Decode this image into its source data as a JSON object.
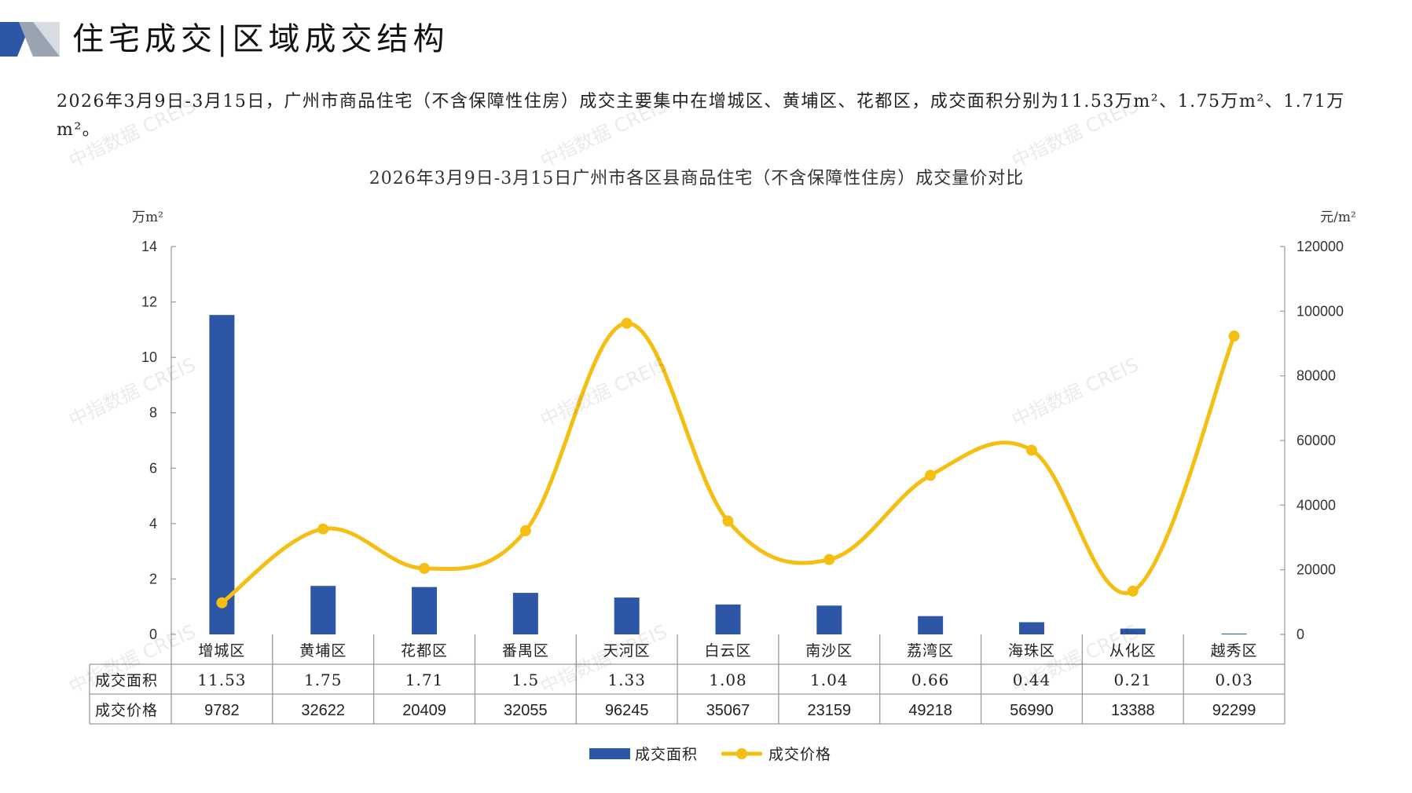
{
  "header": {
    "title": "住宅成交|区域成交结构",
    "summary": "2026年3月9日-3月15日，广州市商品住宅（不含保障性住房）成交主要集中在增城区、黄埔区、花都区，成交面积分别为11.53万m²、1.75万m²、1.71万m²。"
  },
  "watermark": "中指数据 CREIS",
  "chart_data": {
    "type": "bar",
    "title": "2026年3月9日-3月15日广州市各区县商品住宅（不含保障性住房）成交量价对比",
    "categories": [
      "增城区",
      "黄埔区",
      "花都区",
      "番禺区",
      "天河区",
      "白云区",
      "南沙区",
      "荔湾区",
      "海珠区",
      "从化区",
      "越秀区"
    ],
    "y_left_label": "万m²",
    "y_right_label": "元/m²",
    "y_left_range": [
      0,
      14
    ],
    "y_left_ticks": [
      "0",
      "2",
      "4",
      "6",
      "8",
      "10",
      "12",
      "14"
    ],
    "y_right_range": [
      0,
      120000
    ],
    "y_right_ticks": [
      "0",
      "20000",
      "40000",
      "60000",
      "80000",
      "100000",
      "120000"
    ],
    "legend_position": "bottom",
    "grid": false,
    "series": [
      {
        "name": "成交面积",
        "type": "bar",
        "axis": "left",
        "color": "#2E56A6",
        "values": [
          11.53,
          1.75,
          1.71,
          1.5,
          1.33,
          1.08,
          1.04,
          0.66,
          0.44,
          0.21,
          0.03
        ],
        "value_labels": [
          "11.53",
          "1.75",
          "1.71",
          "1.5",
          "1.33",
          "1.08",
          "1.04",
          "0.66",
          "0.44",
          "0.21",
          "0.03"
        ]
      },
      {
        "name": "成交价格",
        "type": "line",
        "axis": "right",
        "color": "#F5BE12",
        "values": [
          9782,
          32622,
          20409,
          32055,
          96245,
          35067,
          23159,
          49218,
          56990,
          13388,
          92299
        ],
        "value_labels": [
          "9782",
          "32622",
          "20409",
          "32055",
          "96245",
          "35067",
          "23159",
          "49218",
          "56990",
          "13388",
          "92299"
        ]
      }
    ]
  }
}
